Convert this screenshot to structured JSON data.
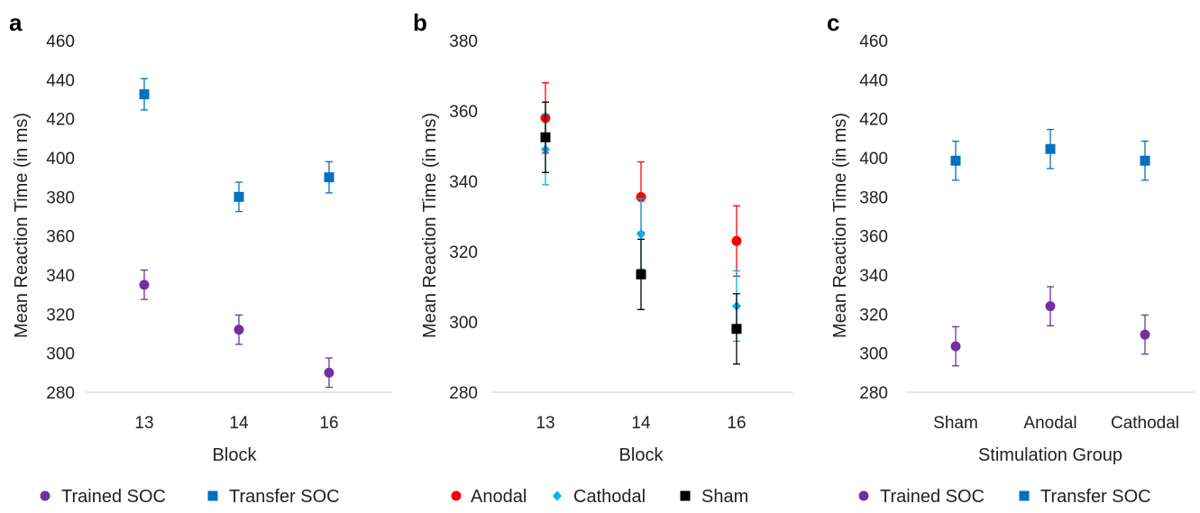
{
  "chart_data": [
    {
      "panel": "a",
      "type": "scatter",
      "categories": [
        "13",
        "14",
        "16"
      ],
      "xlabel": "Block",
      "ylabel": "Mean Reaction Time (in ms)",
      "ylim": [
        280,
        460
      ],
      "yticks": [
        280,
        300,
        320,
        340,
        360,
        380,
        400,
        420,
        440,
        460
      ],
      "legend_position": "bottom",
      "series": [
        {
          "name": "Trained SOC",
          "marker": "circle",
          "color": "#7030a0",
          "values": [
            335,
            312,
            290
          ],
          "errors": [
            7.5,
            7.5,
            7.5
          ]
        },
        {
          "name": "Transfer SOC",
          "marker": "square",
          "color": "#0070c0",
          "values": [
            432.5,
            380,
            390
          ],
          "errors": [
            8,
            7.5,
            8
          ]
        }
      ]
    },
    {
      "panel": "b",
      "type": "scatter",
      "categories": [
        "13",
        "14",
        "16"
      ],
      "xlabel": "Block",
      "ylabel": "Mean Reaction Time (in ms)",
      "ylim": [
        280,
        380
      ],
      "yticks": [
        280,
        300,
        320,
        340,
        360,
        380
      ],
      "legend_position": "bottom",
      "series": [
        {
          "name": "Anodal",
          "marker": "circle",
          "color": "#ff0000",
          "values": [
            358,
            335.5,
            323
          ],
          "errors": [
            10,
            10,
            10
          ]
        },
        {
          "name": "Cathodal",
          "marker": "diamond",
          "color": "#00b0f0",
          "values": [
            349,
            325,
            304.5
          ],
          "errors": [
            10,
            10,
            10
          ]
        },
        {
          "name": "Sham",
          "marker": "square",
          "color": "#000000",
          "values": [
            352.5,
            313.5,
            298
          ],
          "errors": [
            10,
            10,
            10
          ]
        }
      ]
    },
    {
      "panel": "c",
      "type": "scatter",
      "categories": [
        "Sham",
        "Anodal",
        "Cathodal"
      ],
      "xlabel": "Stimulation Group",
      "ylabel": "Mean Reaction Time (in ms)",
      "ylim": [
        280,
        460
      ],
      "yticks": [
        280,
        300,
        320,
        340,
        360,
        380,
        400,
        420,
        440,
        460
      ],
      "legend_position": "bottom",
      "series": [
        {
          "name": "Trained SOC",
          "marker": "circle",
          "color": "#7030a0",
          "values": [
            303.5,
            324,
            309.5
          ],
          "errors": [
            10,
            10,
            10
          ]
        },
        {
          "name": "Transfer SOC",
          "marker": "square",
          "color": "#0070c0",
          "values": [
            398.5,
            404.5,
            398.5
          ],
          "errors": [
            10,
            10,
            10
          ]
        }
      ]
    }
  ],
  "colors": {
    "axis": "#d9d9d9",
    "text": "#222222"
  }
}
